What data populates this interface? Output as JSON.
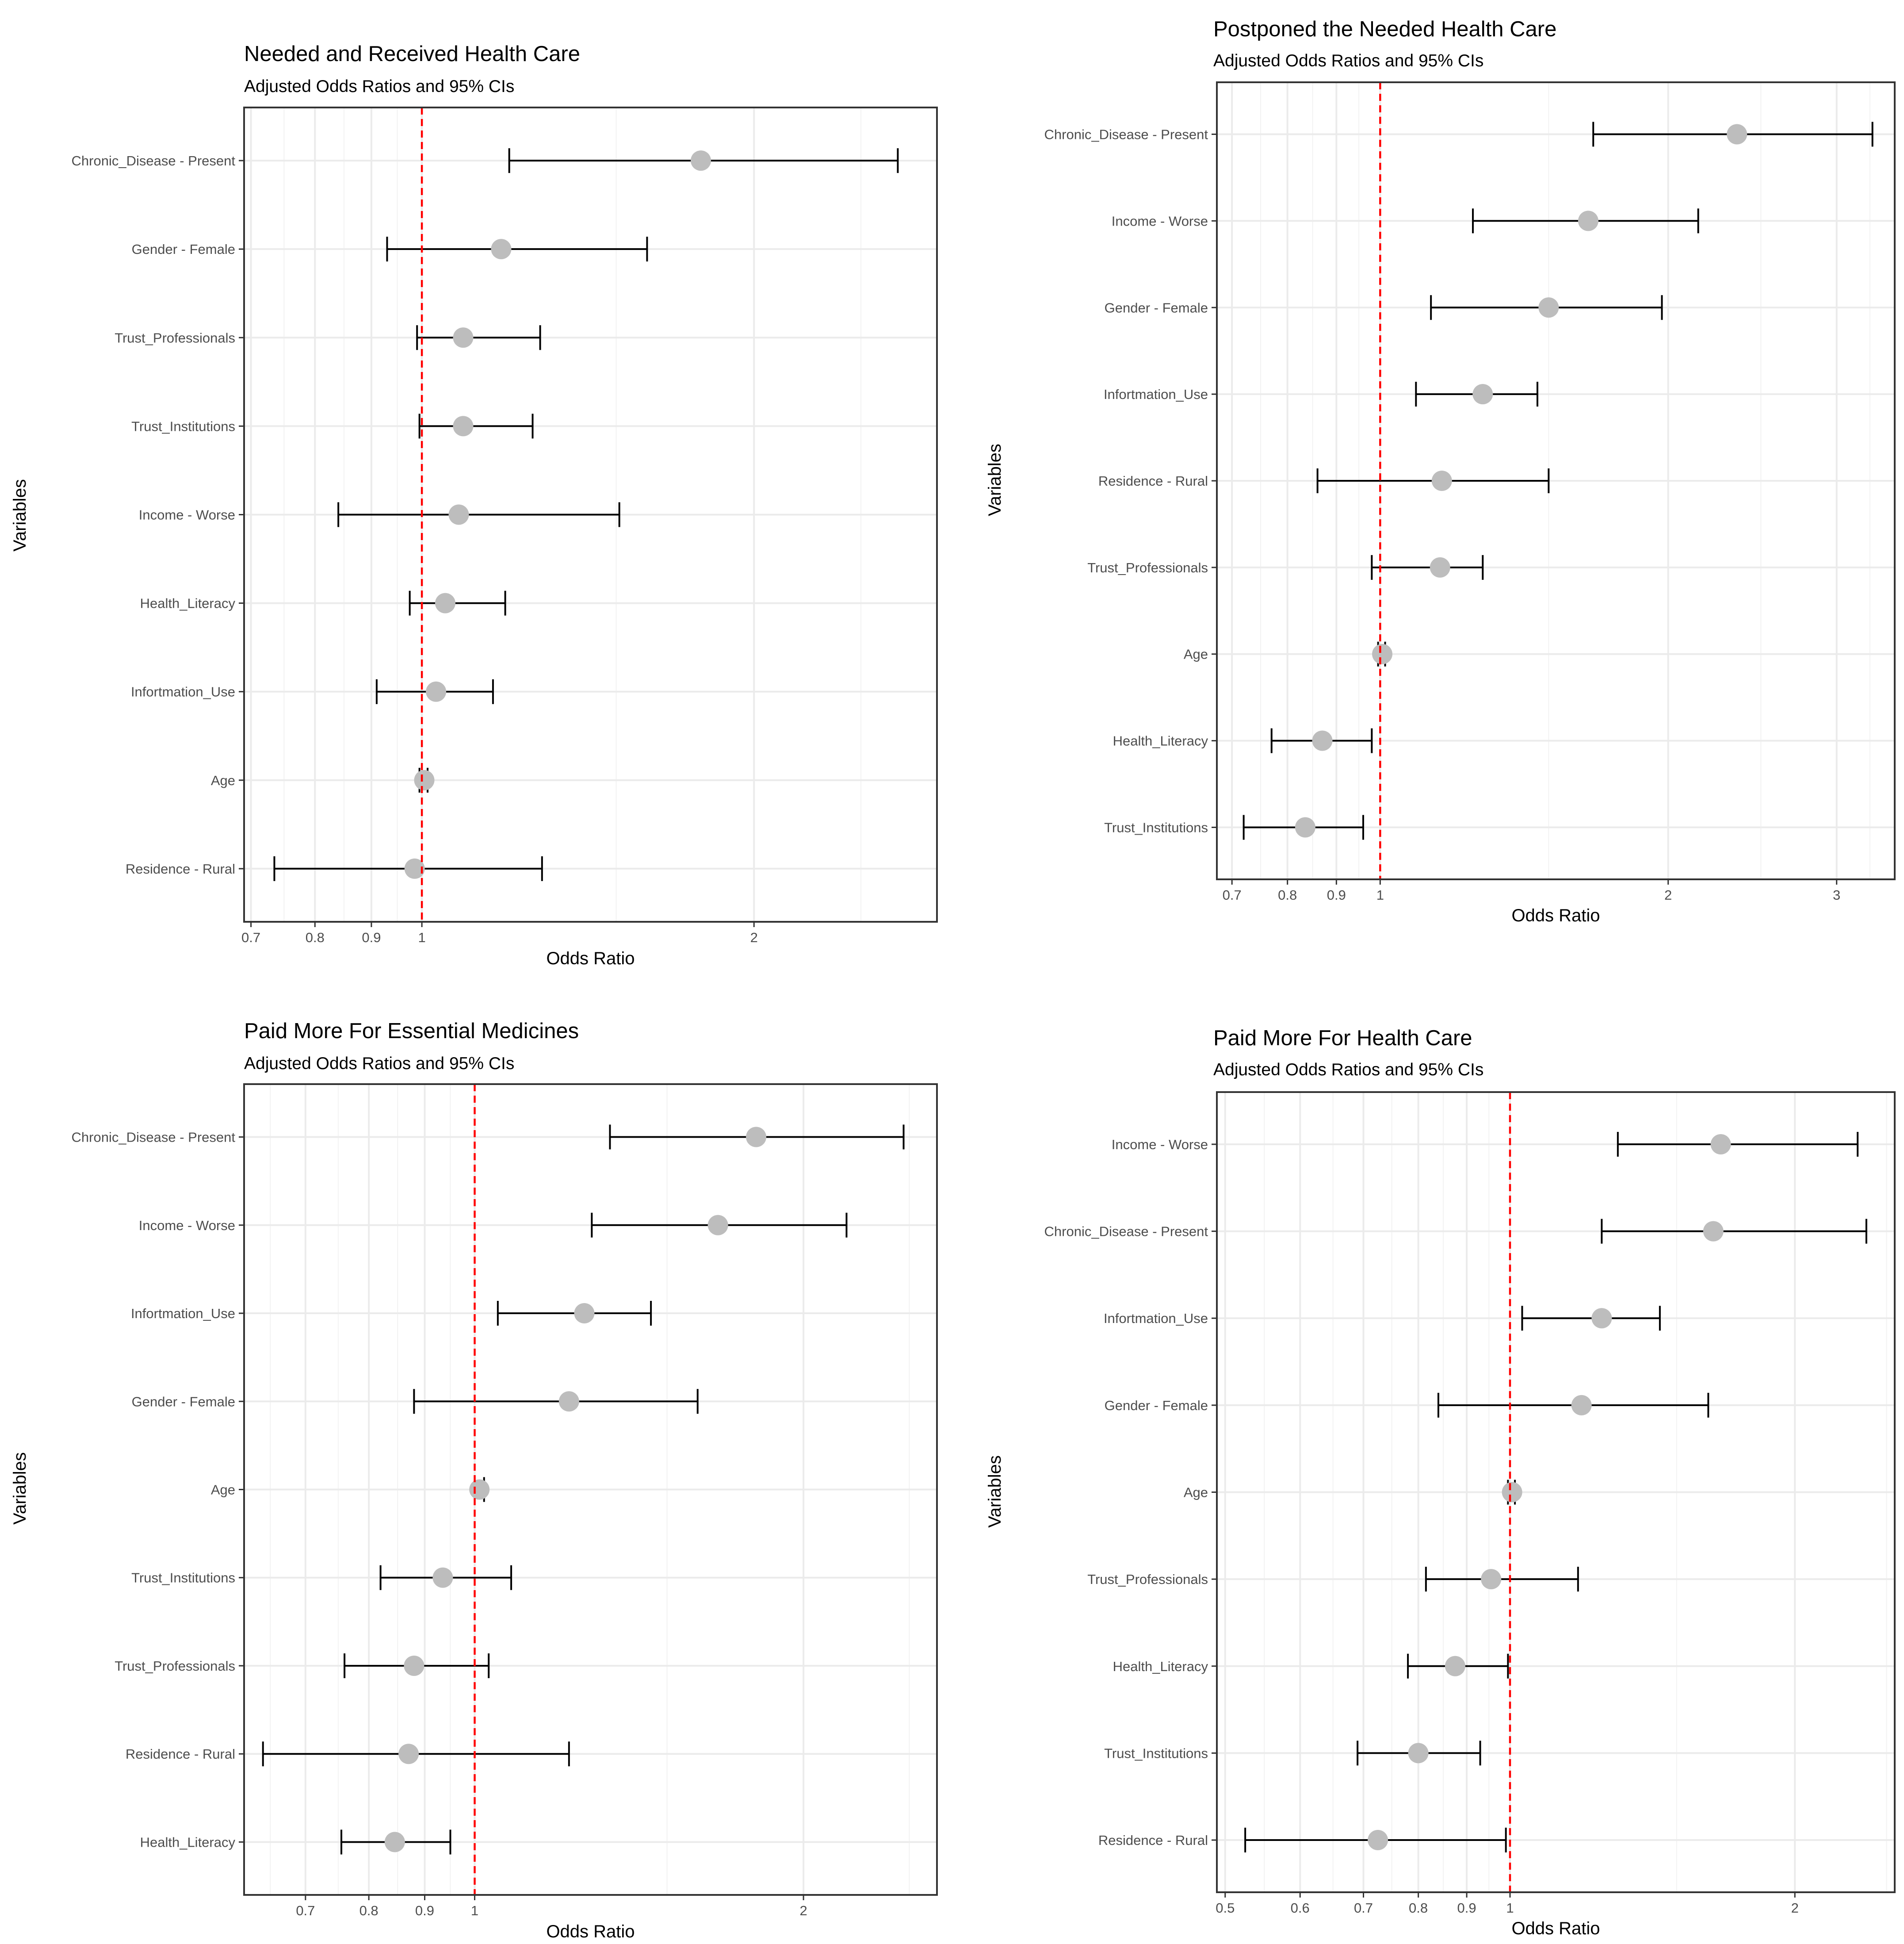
{
  "colors": {
    "point": "#bdbdbd",
    "refline": "#ff0000",
    "grid_major": "#ebebeb",
    "grid_minor": "#f2f2f2",
    "bar": "#000000"
  },
  "chart_data": [
    {
      "type": "forest",
      "title": "Needed and Received Health Care",
      "subtitle": "Adjusted Odds Ratios and 95% CIs",
      "xlabel": "Odds Ratio",
      "ylabel": "Variables",
      "xscale": "log",
      "xlim": [
        0.69,
        2.93
      ],
      "xticks": [
        {
          "v": 0.7,
          "label": "0.7"
        },
        {
          "v": 0.8,
          "label": "0.8"
        },
        {
          "v": 0.9,
          "label": "0.9"
        },
        {
          "v": 1,
          "label": "1"
        },
        {
          "v": 2,
          "label": "2"
        }
      ],
      "minor_grid": [
        0.75,
        0.85,
        0.95,
        1.5,
        2.5
      ],
      "major_grid": [
        0.7,
        0.8,
        0.9,
        1,
        2
      ],
      "reference_line": 1,
      "rows": [
        {
          "label": "Chronic_Disease - Present",
          "or": 1.79,
          "low": 1.2,
          "high": 2.7
        },
        {
          "label": "Gender - Female",
          "or": 1.18,
          "low": 0.93,
          "high": 1.6
        },
        {
          "label": "Trust_Professionals",
          "or": 1.09,
          "low": 0.99,
          "high": 1.28
        },
        {
          "label": "Trust_Institutions",
          "or": 1.09,
          "low": 0.995,
          "high": 1.26
        },
        {
          "label": "Income - Worse",
          "or": 1.08,
          "low": 0.84,
          "high": 1.51
        },
        {
          "label": "Health_Literacy",
          "or": 1.05,
          "low": 0.975,
          "high": 1.19
        },
        {
          "label": "Infortmation_Use",
          "or": 1.03,
          "low": 0.91,
          "high": 1.16
        },
        {
          "label": "Age",
          "or": 1.005,
          "low": 0.995,
          "high": 1.012
        },
        {
          "label": "Residence - Rural",
          "or": 0.985,
          "low": 0.735,
          "high": 1.285
        }
      ]
    },
    {
      "type": "forest",
      "title": "Postponed the Needed Health Care",
      "subtitle": "Adjusted Odds Ratios and 95% CIs",
      "xlabel": "Odds Ratio",
      "ylabel": "Variables",
      "xscale": "log",
      "xlim": [
        0.675,
        3.45
      ],
      "xticks": [
        {
          "v": 0.7,
          "label": "0.7"
        },
        {
          "v": 0.8,
          "label": "0.8"
        },
        {
          "v": 0.9,
          "label": "0.9"
        },
        {
          "v": 1,
          "label": "1"
        },
        {
          "v": 2,
          "label": "2"
        },
        {
          "v": 3,
          "label": "3"
        }
      ],
      "minor_grid": [
        0.75,
        0.85,
        0.95,
        1.5,
        2.5,
        3.25
      ],
      "major_grid": [
        0.7,
        0.8,
        0.9,
        1,
        2,
        3
      ],
      "reference_line": 1,
      "rows": [
        {
          "label": "Chronic_Disease - Present",
          "or": 2.36,
          "low": 1.67,
          "high": 3.27
        },
        {
          "label": "Income - Worse",
          "or": 1.65,
          "low": 1.25,
          "high": 2.15
        },
        {
          "label": "Gender - Female",
          "or": 1.5,
          "low": 1.13,
          "high": 1.97
        },
        {
          "label": "Infortmation_Use",
          "or": 1.28,
          "low": 1.09,
          "high": 1.46
        },
        {
          "label": "Residence - Rural",
          "or": 1.16,
          "low": 0.86,
          "high": 1.5
        },
        {
          "label": "Trust_Professionals",
          "or": 1.155,
          "low": 0.98,
          "high": 1.28
        },
        {
          "label": "Age",
          "or": 1.005,
          "low": 0.995,
          "high": 1.012
        },
        {
          "label": "Health_Literacy",
          "or": 0.87,
          "low": 0.77,
          "high": 0.98
        },
        {
          "label": "Trust_Institutions",
          "or": 0.835,
          "low": 0.72,
          "high": 0.96
        }
      ]
    },
    {
      "type": "forest",
      "title": "Paid More For Essential Medicines",
      "subtitle": "Adjusted Odds Ratios and 95% CIs",
      "xlabel": "Odds Ratio",
      "ylabel": "Variables",
      "xscale": "log",
      "xlim": [
        0.615,
        2.65
      ],
      "xticks": [
        {
          "v": 0.7,
          "label": "0.7"
        },
        {
          "v": 0.8,
          "label": "0.8"
        },
        {
          "v": 0.9,
          "label": "0.9"
        },
        {
          "v": 1,
          "label": "1"
        },
        {
          "v": 2,
          "label": "2"
        }
      ],
      "minor_grid": [
        0.65,
        0.75,
        0.85,
        0.95,
        1.5,
        2.5
      ],
      "major_grid": [
        0.7,
        0.8,
        0.9,
        1,
        2
      ],
      "reference_line": 1,
      "rows": [
        {
          "label": "Chronic_Disease - Present",
          "or": 1.81,
          "low": 1.33,
          "high": 2.47
        },
        {
          "label": "Income - Worse",
          "or": 1.67,
          "low": 1.28,
          "high": 2.19
        },
        {
          "label": "Infortmation_Use",
          "or": 1.26,
          "low": 1.05,
          "high": 1.45
        },
        {
          "label": "Gender - Female",
          "or": 1.22,
          "low": 0.88,
          "high": 1.6
        },
        {
          "label": "Age",
          "or": 1.01,
          "low": 1.0,
          "high": 1.02
        },
        {
          "label": "Trust_Institutions",
          "or": 0.935,
          "low": 0.82,
          "high": 1.08
        },
        {
          "label": "Trust_Professionals",
          "or": 0.88,
          "low": 0.76,
          "high": 1.03
        },
        {
          "label": "Residence - Rural",
          "or": 0.87,
          "low": 0.64,
          "high": 1.22
        },
        {
          "label": "Health_Literacy",
          "or": 0.845,
          "low": 0.755,
          "high": 0.95
        }
      ]
    },
    {
      "type": "forest",
      "title": "Paid More For Health Care",
      "subtitle": "Adjusted Odds Ratios and 95% CIs",
      "xlabel": "Odds Ratio",
      "ylabel": "Variables",
      "xscale": "log",
      "xlim": [
        0.49,
        2.55
      ],
      "xticks": [
        {
          "v": 0.5,
          "label": "0.5"
        },
        {
          "v": 0.6,
          "label": "0.6"
        },
        {
          "v": 0.7,
          "label": "0.7"
        },
        {
          "v": 0.8,
          "label": "0.8"
        },
        {
          "v": 0.9,
          "label": "0.9"
        },
        {
          "v": 1,
          "label": "1"
        },
        {
          "v": 2,
          "label": "2"
        }
      ],
      "minor_grid": [
        0.55,
        0.65,
        0.75,
        0.85,
        0.95,
        1.5,
        2.5
      ],
      "major_grid": [
        0.5,
        0.6,
        0.7,
        0.8,
        0.9,
        1,
        2
      ],
      "reference_line": 1,
      "rows": [
        {
          "label": "Income - Worse",
          "or": 1.67,
          "low": 1.3,
          "high": 2.33
        },
        {
          "label": "Chronic_Disease - Present",
          "or": 1.64,
          "low": 1.25,
          "high": 2.38
        },
        {
          "label": "Infortmation_Use",
          "or": 1.25,
          "low": 1.03,
          "high": 1.44
        },
        {
          "label": "Gender - Female",
          "or": 1.19,
          "low": 0.84,
          "high": 1.62
        },
        {
          "label": "Age",
          "or": 1.005,
          "low": 0.995,
          "high": 1.012
        },
        {
          "label": "Trust_Professionals",
          "or": 0.955,
          "low": 0.815,
          "high": 1.18
        },
        {
          "label": "Health_Literacy",
          "or": 0.875,
          "low": 0.78,
          "high": 0.995
        },
        {
          "label": "Trust_Institutions",
          "or": 0.8,
          "low": 0.69,
          "high": 0.93
        },
        {
          "label": "Residence - Rural",
          "or": 0.725,
          "low": 0.525,
          "high": 0.99
        }
      ]
    }
  ]
}
